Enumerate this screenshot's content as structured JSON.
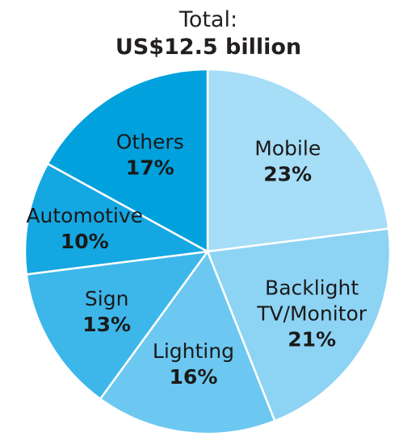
{
  "chart_data": {
    "type": "pie",
    "title": "Total:",
    "subtitle": "US$12.5 billion",
    "slices": [
      {
        "name": "Mobile",
        "label_lines": [
          "Mobile"
        ],
        "pct_label": "23%",
        "value": 23,
        "color": "#a6ddf7"
      },
      {
        "name": "Backlight TV/Monitor",
        "label_lines": [
          "Backlight",
          "TV/Monitor"
        ],
        "pct_label": "21%",
        "value": 21,
        "color": "#8dd3f4"
      },
      {
        "name": "Lighting",
        "label_lines": [
          "Lighting"
        ],
        "pct_label": "16%",
        "value": 16,
        "color": "#6cc8f0"
      },
      {
        "name": "Sign",
        "label_lines": [
          "Sign"
        ],
        "pct_label": "13%",
        "value": 13,
        "color": "#3db7ea"
      },
      {
        "name": "Automotive",
        "label_lines": [
          "Automotive"
        ],
        "pct_label": "10%",
        "value": 10,
        "color": "#14a7e2"
      },
      {
        "name": "Others",
        "label_lines": [
          "Others"
        ],
        "pct_label": "17%",
        "value": 17,
        "color": "#00a1dd"
      }
    ],
    "start_angle_deg": 0,
    "direction": "clockwise"
  }
}
